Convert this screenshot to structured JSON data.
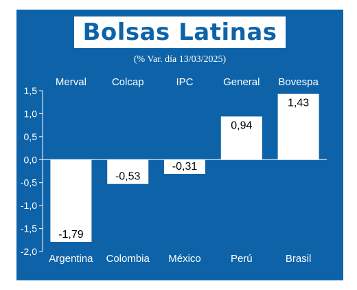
{
  "title": "Bolsas Latinas",
  "subtitle": "(% Var. día 13/03/2025)",
  "colors": {
    "background": "#0e63a8",
    "bars": "#ffffff",
    "text": "#ffffff",
    "label_text": "#000000"
  },
  "chart_data": {
    "type": "bar",
    "title": "Bolsas Latinas",
    "subtitle": "(% Var. día 13/03/2025)",
    "index_labels": [
      "Merval",
      "Colcap",
      "IPC",
      "General",
      "Bovespa"
    ],
    "categories": [
      "Argentina",
      "Colombia",
      "México",
      "Perú",
      "Brasil"
    ],
    "values": [
      -1.79,
      -0.53,
      -0.31,
      0.94,
      1.43
    ],
    "value_labels": [
      "-1,79",
      "-0,53",
      "-0,31",
      "0,94",
      "1,43"
    ],
    "y_ticks": [
      "1,5",
      "1,0",
      "0,5",
      "0,0",
      "-0,5",
      "-1,0",
      "-1,5",
      "-2,0"
    ],
    "y_tick_values": [
      1.5,
      1.0,
      0.5,
      0.0,
      -0.5,
      -1.0,
      -1.5,
      -2.0
    ],
    "ylim": [
      -2.0,
      1.5
    ],
    "xlabel": "",
    "ylabel": "",
    "grid": false,
    "legend": "none"
  }
}
